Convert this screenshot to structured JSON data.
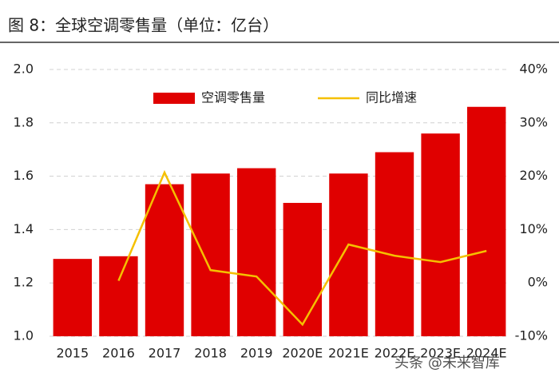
{
  "chart_data": {
    "type": "bar",
    "title": "图 8：全球空调零售量（单位：亿台）",
    "categories": [
      "2015",
      "2016",
      "2017",
      "2018",
      "2019",
      "2020E",
      "2021E",
      "2022E",
      "2023E",
      "2024E"
    ],
    "series": [
      {
        "name": "空调零售量",
        "type": "bar",
        "color": "#e00000",
        "values": [
          1.29,
          1.3,
          1.57,
          1.61,
          1.63,
          1.5,
          1.61,
          1.69,
          1.76,
          1.86
        ]
      },
      {
        "name": "同比增速",
        "type": "line",
        "axis": "y2",
        "color": "#f5c000",
        "values": [
          null,
          0.4,
          20.7,
          2.4,
          1.2,
          -7.8,
          7.2,
          5.1,
          3.9,
          6.0
        ]
      }
    ],
    "ylim": [
      1.0,
      2.0
    ],
    "yticks": [
      {
        "value": 1.0,
        "label": "1.0"
      },
      1.2,
      1.4,
      1.6,
      1.8,
      {
        "value": 2.0,
        "label": "2.0"
      }
    ],
    "y2lim": [
      -10,
      40
    ],
    "y2ticks": [
      {
        "value": -10,
        "label": "-10%"
      },
      {
        "value": 0,
        "label": "0%"
      },
      {
        "value": 10,
        "label": "10%"
      },
      {
        "value": 20,
        "label": "20%"
      },
      {
        "value": 30,
        "label": "30%"
      },
      {
        "value": 40,
        "label": "40%"
      }
    ],
    "grid": true,
    "legend": "top",
    "watermark": "头条 @未来智库"
  }
}
